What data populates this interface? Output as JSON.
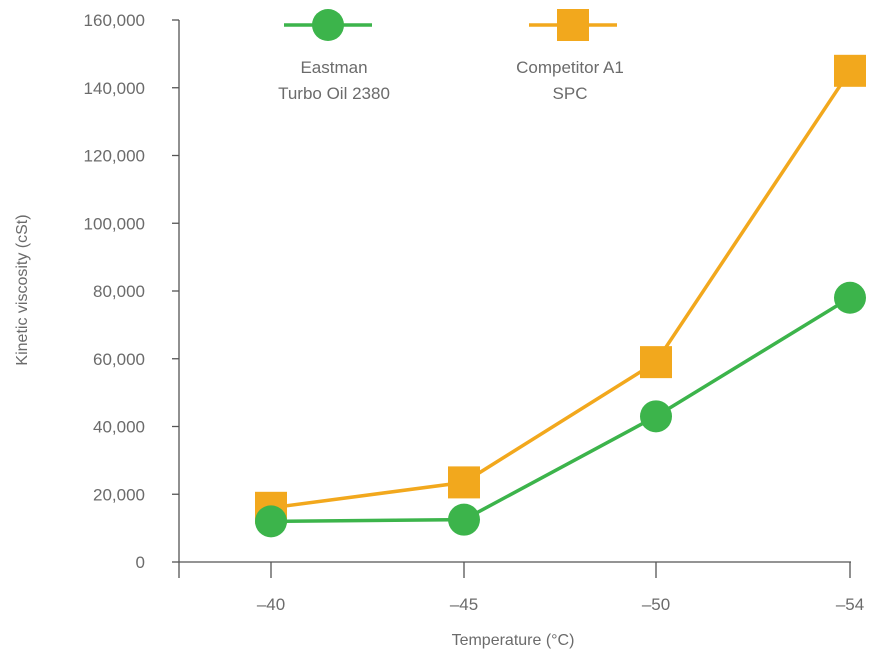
{
  "chart_data": {
    "type": "line",
    "title": "",
    "xlabel": "Temperature (°C)",
    "ylabel": "Kinetic viscosity (cSt)",
    "categories": [
      "–40",
      "–45",
      "–50",
      "–54"
    ],
    "ylim": [
      0,
      160000
    ],
    "yticks": [
      0,
      20000,
      40000,
      60000,
      80000,
      100000,
      120000,
      140000,
      160000
    ],
    "ytick_labels": [
      "0",
      "20,000",
      "40,000",
      "60,000",
      "80,000",
      "100,000",
      "120,000",
      "140,000",
      "160,000"
    ],
    "grid": false,
    "legend_position": "top",
    "series": [
      {
        "name_lines": [
          "Eastman",
          "Turbo Oil 2380"
        ],
        "color": "#3cb44b",
        "marker": "circle",
        "values": [
          12000,
          12500,
          43000,
          78000
        ]
      },
      {
        "name_lines": [
          "Competitor A1",
          "SPC"
        ],
        "color": "#f2a81d",
        "marker": "square",
        "values": [
          16000,
          23500,
          59000,
          145000
        ]
      }
    ]
  }
}
